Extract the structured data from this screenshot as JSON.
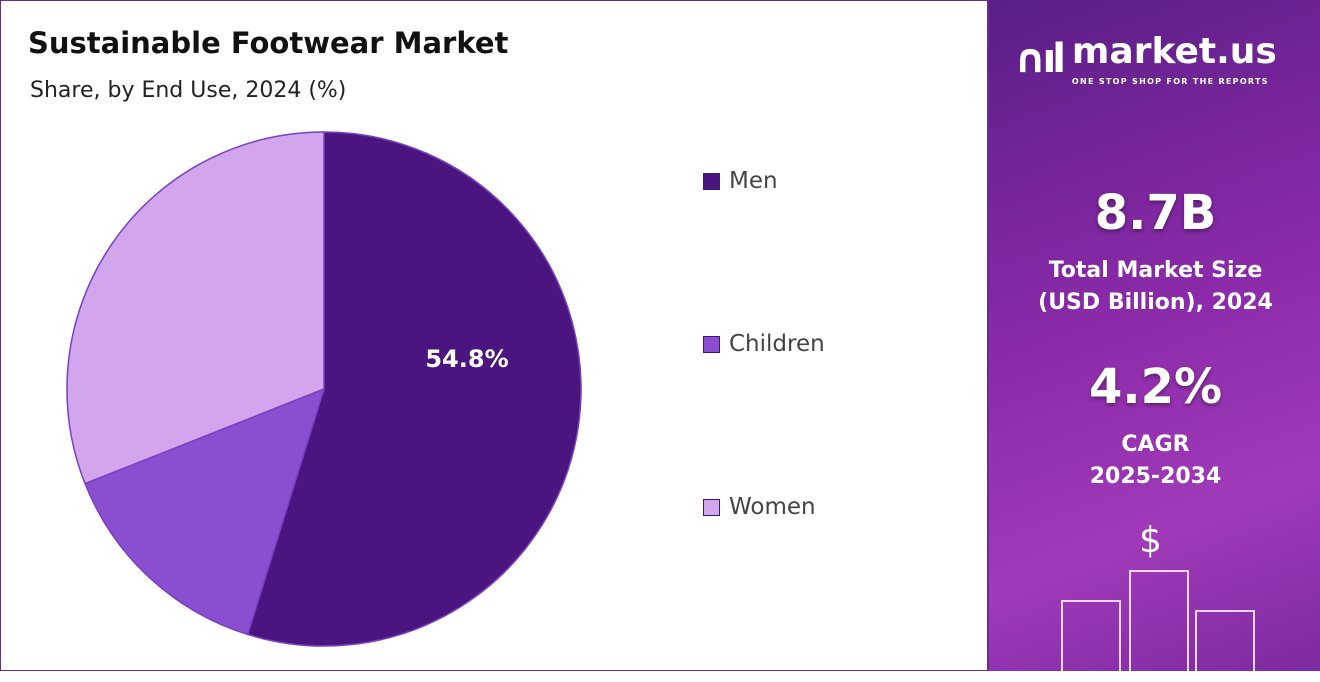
{
  "chart_data": {
    "type": "pie",
    "title": "Sustainable Footwear Market",
    "subtitle": "Share, by End Use, 2024 (%)",
    "slices": [
      {
        "label": "Men",
        "value": 54.8,
        "color": "#4b1580",
        "data_label": "54.8%"
      },
      {
        "label": "Children",
        "value": 14.2,
        "color": "#8a4fd0"
      },
      {
        "label": "Women",
        "value": 31.0,
        "color": "#d2a6ec"
      }
    ],
    "legend_position": "right"
  },
  "panel": {
    "logo_name": "market.us",
    "logo_tagline": "ONE STOP SHOP FOR THE REPORTS",
    "market_size": "8.7B",
    "market_size_label_1": "Total Market Size",
    "market_size_label_2": "(USD Billion), 2024",
    "cagr": "4.2%",
    "cagr_label_1": "CAGR",
    "cagr_label_2": "2025-2034",
    "dollar_symbol": "$"
  }
}
